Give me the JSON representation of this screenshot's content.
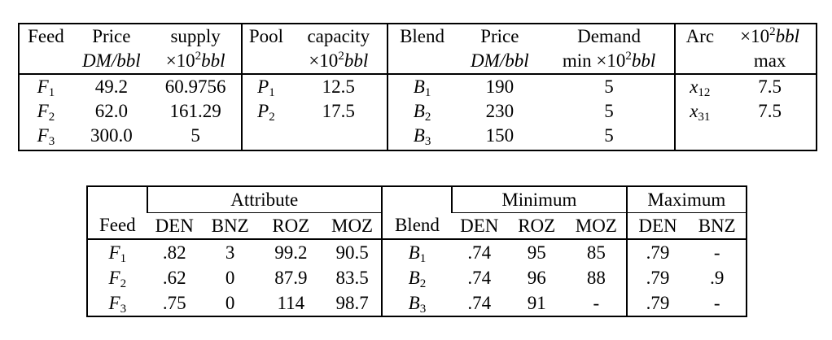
{
  "table1": {
    "headers_row1": [
      "Feed",
      "Price",
      "supply",
      "Pool",
      "capacity",
      "Blend",
      "Price",
      "Demand",
      "Arc",
      "×10",
      "2",
      "bbl"
    ],
    "headers_row2": {
      "price_unit": "DM/bbl",
      "supply_prefix": "×10",
      "supply_exp": "2",
      "supply_unit": "bbl",
      "capacity_prefix": "×10",
      "capacity_exp": "2",
      "capacity_unit": "bbl",
      "blend_price_unit": "DM/bbl",
      "demand_prefix": "min ×10",
      "demand_exp": "2",
      "demand_unit": "bbl",
      "arc_max": "max"
    },
    "feeds": [
      {
        "sym": "F",
        "sub": "1",
        "price": "49.2",
        "supply": "60.9756"
      },
      {
        "sym": "F",
        "sub": "2",
        "price": "62.0",
        "supply": "161.29"
      },
      {
        "sym": "F",
        "sub": "3",
        "price": "300.0",
        "supply": "5"
      }
    ],
    "pools": [
      {
        "sym": "P",
        "sub": "1",
        "capacity": "12.5"
      },
      {
        "sym": "P",
        "sub": "2",
        "capacity": "17.5"
      }
    ],
    "blends": [
      {
        "sym": "B",
        "sub": "1",
        "price": "190",
        "demand": "5"
      },
      {
        "sym": "B",
        "sub": "2",
        "price": "230",
        "demand": "5"
      },
      {
        "sym": "B",
        "sub": "3",
        "price": "150",
        "demand": "5"
      }
    ],
    "arcs": [
      {
        "sym": "x",
        "sub": "12",
        "max": "7.5"
      },
      {
        "sym": "x",
        "sub": "31",
        "max": "7.5"
      }
    ]
  },
  "table2": {
    "group_attribute": "Attribute",
    "group_minimum": "Minimum",
    "group_maximum": "Maximum",
    "headers": [
      "Feed",
      "DEN",
      "BNZ",
      "ROZ",
      "MOZ",
      "Blend",
      "DEN",
      "ROZ",
      "MOZ",
      "DEN",
      "BNZ"
    ],
    "rows": [
      {
        "feed_sym": "F",
        "feed_sub": "1",
        "den": ".82",
        "bnz": "3",
        "roz": "99.2",
        "moz": "90.5",
        "blend_sym": "B",
        "blend_sub": "1",
        "min_den": ".74",
        "min_roz": "95",
        "min_moz": "85",
        "max_den": ".79",
        "max_bnz": "-"
      },
      {
        "feed_sym": "F",
        "feed_sub": "2",
        "den": ".62",
        "bnz": "0",
        "roz": "87.9",
        "moz": "83.5",
        "blend_sym": "B",
        "blend_sub": "2",
        "min_den": ".74",
        "min_roz": "96",
        "min_moz": "88",
        "max_den": ".79",
        "max_bnz": ".9"
      },
      {
        "feed_sym": "F",
        "feed_sub": "3",
        "den": ".75",
        "bnz": "0",
        "roz": "114",
        "moz": "98.7",
        "blend_sym": "B",
        "blend_sub": "3",
        "min_den": ".74",
        "min_roz": "91",
        "min_moz": "-",
        "max_den": ".79",
        "max_bnz": "-"
      }
    ]
  }
}
